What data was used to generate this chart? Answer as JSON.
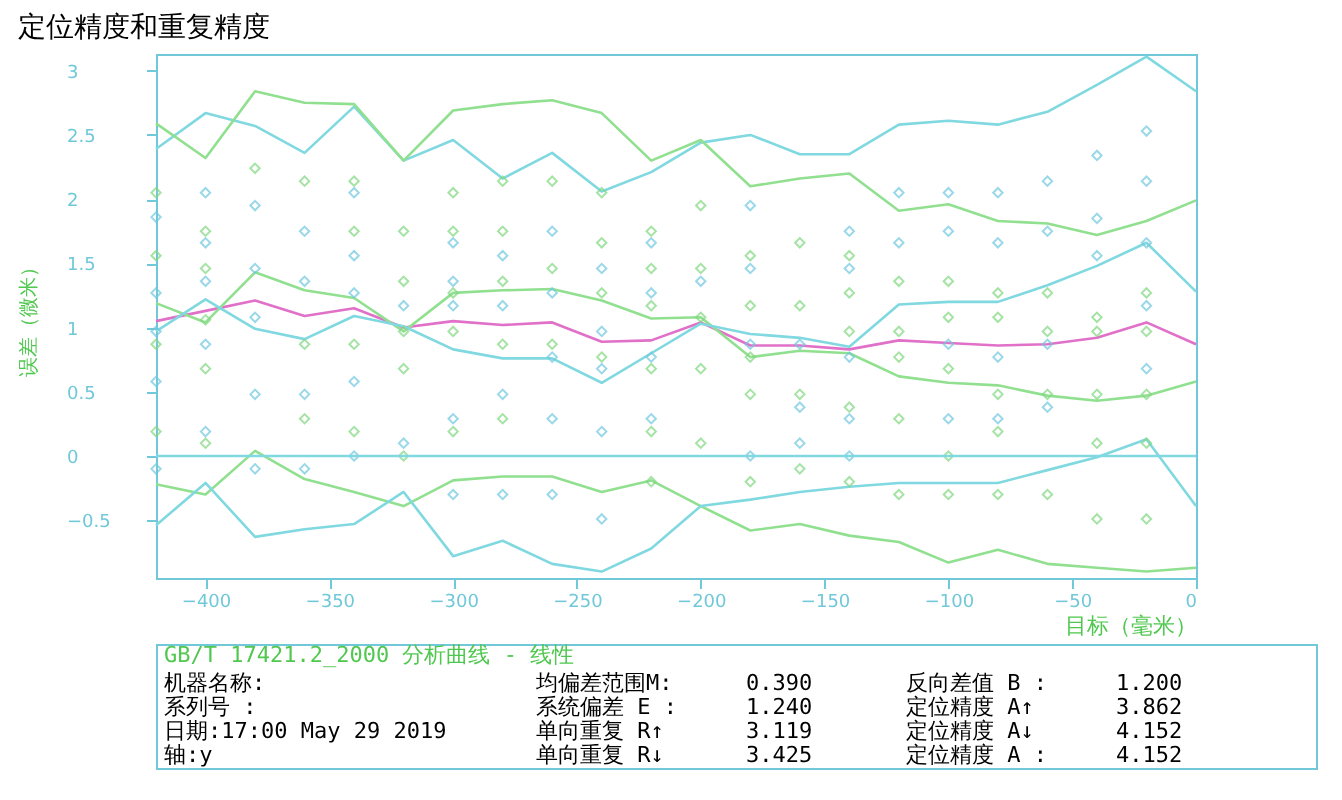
{
  "chart_data": {
    "type": "line",
    "title": "定位精度和重复精度",
    "xlabel": "目标（毫米）",
    "ylabel": "误差（微米）",
    "xlim": [
      -420,
      0
    ],
    "ylim": [
      -0.95,
      3.13
    ],
    "xticks": [
      -400,
      -350,
      -300,
      -250,
      -200,
      -150,
      -100,
      -50,
      0
    ],
    "yticks": [
      -0.5,
      0,
      0.5,
      1,
      1.5,
      2,
      2.5,
      3
    ],
    "grid": false,
    "x": [
      -420,
      -400,
      -380,
      -360,
      -340,
      -320,
      -300,
      -280,
      -260,
      -240,
      -220,
      -200,
      -180,
      -160,
      -140,
      -120,
      -100,
      -80,
      -60,
      -40,
      -20,
      0
    ],
    "series": [
      {
        "color": "#80d8e0",
        "values": [
          2.39,
          2.67,
          2.57,
          2.36,
          2.72,
          2.3,
          2.46,
          2.16,
          2.36,
          2.06,
          2.21,
          2.44,
          2.5,
          2.35,
          2.35,
          2.58,
          2.61,
          2.58,
          2.68,
          2.89,
          3.11,
          2.84
        ]
      },
      {
        "color": "#90e090",
        "values": [
          2.59,
          2.32,
          2.84,
          2.75,
          2.74,
          2.3,
          2.69,
          2.74,
          2.77,
          2.67,
          2.3,
          2.46,
          2.1,
          2.16,
          2.2,
          1.91,
          1.96,
          1.83,
          1.81,
          1.72,
          1.83,
          1.99
        ]
      },
      {
        "color": "#e070c8",
        "values": [
          1.05,
          1.13,
          1.21,
          1.09,
          1.15,
          1.0,
          1.05,
          1.02,
          1.04,
          0.89,
          0.9,
          1.04,
          0.86,
          0.86,
          0.83,
          0.9,
          0.88,
          0.86,
          0.87,
          0.92,
          1.04,
          0.87
        ]
      },
      {
        "color": "#90e090",
        "values": [
          1.19,
          1.04,
          1.43,
          1.29,
          1.23,
          0.97,
          1.27,
          1.29,
          1.3,
          1.21,
          1.07,
          1.08,
          0.77,
          0.82,
          0.8,
          0.62,
          0.57,
          0.55,
          0.47,
          0.43,
          0.47,
          0.58
        ]
      },
      {
        "color": "#80d8e0",
        "values": [
          0.97,
          1.22,
          0.99,
          0.91,
          1.09,
          1.01,
          0.83,
          0.76,
          0.76,
          0.57,
          0.8,
          1.03,
          0.95,
          0.92,
          0.85,
          1.18,
          1.2,
          1.2,
          1.33,
          1.48,
          1.66,
          1.28
        ]
      },
      {
        "color": "#90e090",
        "values": [
          -0.22,
          -0.3,
          0.04,
          -0.18,
          -0.28,
          -0.39,
          -0.19,
          -0.16,
          -0.16,
          -0.28,
          -0.19,
          -0.39,
          -0.58,
          -0.53,
          -0.62,
          -0.67,
          -0.83,
          -0.73,
          -0.84,
          -0.87,
          -0.9,
          -0.87
        ]
      },
      {
        "color": "#80d8e0",
        "values": [
          -0.54,
          -0.21,
          -0.63,
          -0.57,
          -0.53,
          -0.28,
          -0.78,
          -0.66,
          -0.84,
          -0.9,
          -0.72,
          -0.39,
          -0.34,
          -0.28,
          -0.24,
          -0.21,
          -0.21,
          -0.21,
          -0.11,
          -0.01,
          0.13,
          -0.39
        ]
      },
      {
        "type": "scatter",
        "marker": "diamond",
        "color": "#70c8e0",
        "x": [
          -420,
          -420,
          -420,
          -420,
          -420,
          -400,
          -400,
          -400,
          -400,
          -400,
          -380,
          -380,
          -380,
          -380,
          -380,
          -360,
          -360,
          -360,
          -360,
          -340,
          -340,
          -340,
          -340,
          -340,
          -320,
          -320,
          -300,
          -300,
          -300,
          -300,
          -300,
          -280,
          -280,
          -280,
          -280,
          -260,
          -260,
          -260,
          -260,
          -260,
          -240,
          -240,
          -240,
          -240,
          -240,
          -220,
          -220,
          -220,
          -220,
          -200,
          -180,
          -180,
          -180,
          -180,
          -160,
          -160,
          -160,
          -140,
          -140,
          -140,
          -140,
          -140,
          -120,
          -120,
          -100,
          -100,
          -100,
          -100,
          -80,
          -80,
          -80,
          -80,
          -60,
          -60,
          -60,
          -60,
          -40,
          -40,
          -40,
          -20,
          -20,
          -20,
          -20,
          -20
        ],
        "values": [
          1.86,
          1.27,
          0.97,
          0.58,
          -0.1,
          2.05,
          1.66,
          1.36,
          0.87,
          0.19,
          1.95,
          1.46,
          1.08,
          0.48,
          -0.1,
          1.75,
          1.36,
          0.48,
          -0.1,
          2.05,
          1.56,
          1.27,
          0.58,
          0,
          1.17,
          0.1,
          1.66,
          1.36,
          1.17,
          0.29,
          -0.3,
          1.56,
          1.17,
          0.48,
          -0.3,
          1.75,
          1.27,
          0.77,
          0.29,
          -0.3,
          1.46,
          0.97,
          0.68,
          0.19,
          -0.49,
          1.66,
          1.27,
          0.77,
          0.29,
          1.36,
          1.95,
          1.46,
          0.87,
          0,
          0.87,
          0.38,
          0.1,
          1.75,
          1.46,
          0.77,
          0.29,
          0,
          2.05,
          1.66,
          2.05,
          1.75,
          0.87,
          0.29,
          2.05,
          1.66,
          0.77,
          0.29,
          2.14,
          1.75,
          0.87,
          0.38,
          2.34,
          1.85,
          1.56,
          2.53,
          2.14,
          1.66,
          1.17,
          0.68
        ]
      },
      {
        "type": "scatter",
        "marker": "diamond",
        "color": "#80d880",
        "x": [
          -420,
          -420,
          -420,
          -420,
          -400,
          -400,
          -400,
          -400,
          -400,
          -380,
          -360,
          -360,
          -360,
          -340,
          -340,
          -340,
          -340,
          -320,
          -320,
          -320,
          -320,
          -320,
          -300,
          -300,
          -300,
          -300,
          -300,
          -280,
          -280,
          -280,
          -280,
          -280,
          -260,
          -260,
          -260,
          -240,
          -240,
          -240,
          -240,
          -220,
          -220,
          -220,
          -220,
          -220,
          -220,
          -200,
          -200,
          -200,
          -200,
          -200,
          -180,
          -180,
          -180,
          -180,
          -180,
          -160,
          -160,
          -160,
          -160,
          -140,
          -140,
          -140,
          -140,
          -140,
          -120,
          -120,
          -120,
          -120,
          -120,
          -100,
          -100,
          -100,
          -100,
          -100,
          -80,
          -80,
          -80,
          -80,
          -80,
          -60,
          -60,
          -60,
          -60,
          -40,
          -40,
          -40,
          -40,
          -40,
          -20,
          -20,
          -20,
          -20,
          -20
        ],
        "values": [
          2.05,
          1.56,
          0.87,
          0.19,
          1.75,
          1.46,
          1.06,
          0.68,
          0.1,
          2.24,
          2.14,
          0.87,
          0.29,
          2.14,
          1.75,
          0.87,
          0.19,
          1.75,
          1.36,
          0.97,
          0.68,
          0,
          2.05,
          1.75,
          1.27,
          0.97,
          0.19,
          2.14,
          1.75,
          1.36,
          0.87,
          0.29,
          2.14,
          1.46,
          0.87,
          2.05,
          1.66,
          1.27,
          0.77,
          1.75,
          1.46,
          1.17,
          0.68,
          0.19,
          -0.2,
          1.95,
          1.46,
          1.08,
          0.68,
          0.1,
          1.56,
          1.17,
          0.77,
          0.48,
          -0.2,
          1.66,
          1.17,
          0.48,
          -0.1,
          1.56,
          1.27,
          0.97,
          0.38,
          -0.2,
          1.36,
          0.97,
          0.77,
          0.29,
          -0.3,
          1.36,
          1.08,
          0.68,
          0,
          -0.3,
          1.27,
          1.08,
          0.48,
          0.19,
          -0.3,
          1.27,
          0.97,
          0.48,
          -0.3,
          1.08,
          0.97,
          0.48,
          0.1,
          -0.49,
          1.27,
          0.97,
          0.48,
          0.1,
          -0.49
        ]
      }
    ],
    "ref_lines": [
      {
        "axis": "y",
        "value": 0,
        "color": "#80d8e0"
      }
    ],
    "annotations": [
      "GB/T 17421.2_2000 分析曲线 - 线性",
      "机器名称:",
      "系列号  :",
      "日期:17:00 May 29 2019",
      "轴:y",
      "均偏差范围M:",
      "0.390",
      "系统偏差 E :",
      "1.240",
      "单向重复 R↑",
      "3.119",
      "单向重复 R↓",
      "3.425",
      "反向差值 B :",
      "1.200",
      "定位精度 A↑",
      "3.862",
      "定位精度 A↓",
      "4.152",
      "定位精度 A :",
      "4.152"
    ]
  }
}
